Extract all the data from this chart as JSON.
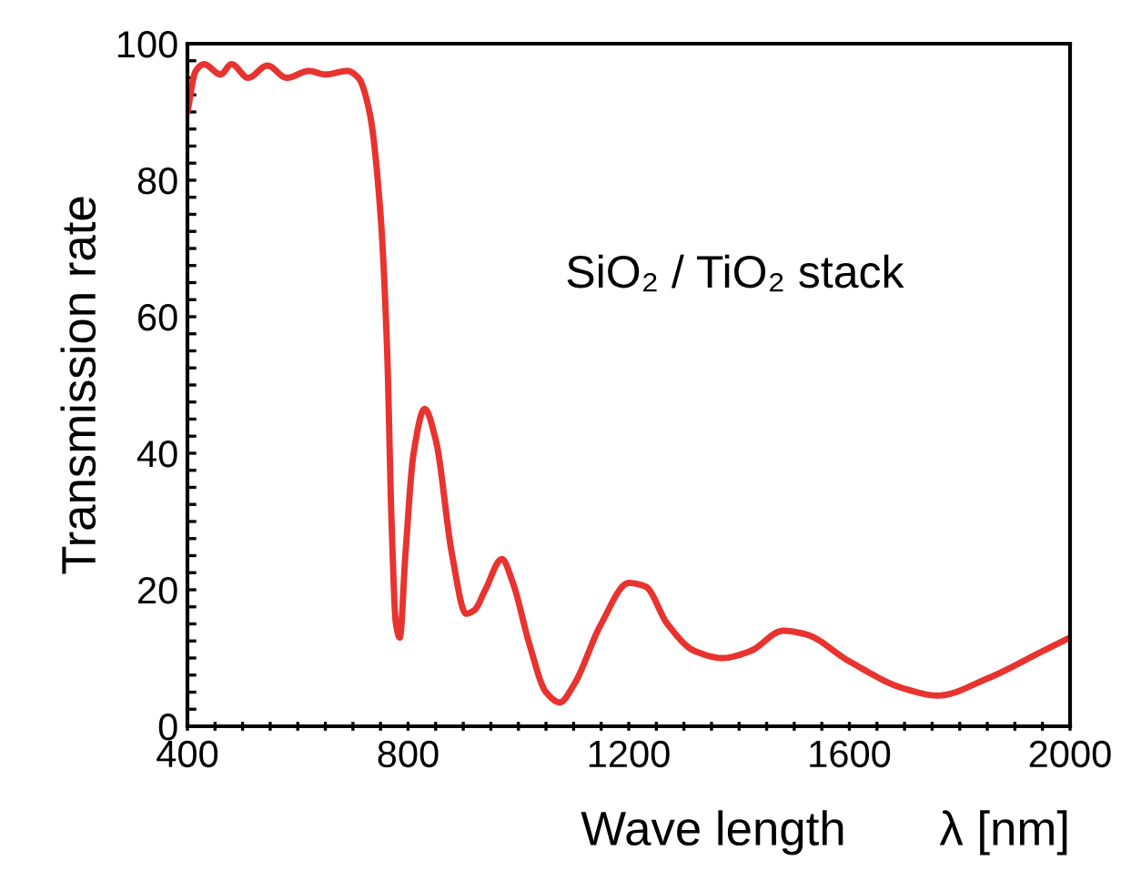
{
  "chart_data": {
    "type": "line",
    "xlabel": "Wave length       λ [nm]",
    "ylabel": "Transmission rate",
    "annotations": [
      "SiO₂ / TiO₂ stack"
    ],
    "x": [
      400,
      415,
      430,
      460,
      480,
      510,
      545,
      580,
      620,
      650,
      690,
      710,
      730,
      750,
      762,
      770,
      778,
      785,
      795,
      810,
      830,
      850,
      880,
      905,
      920,
      940,
      970,
      990,
      1020,
      1050,
      1075,
      1100,
      1150,
      1200,
      1230,
      1270,
      1320,
      1370,
      1420,
      1480,
      1520,
      1600,
      1700,
      1760,
      1850,
      1950,
      2000
    ],
    "series": [
      {
        "color": "#e8332e",
        "values": [
          90,
          96,
          97,
          95.5,
          97,
          95,
          96.8,
          95,
          96,
          95.5,
          96,
          95,
          90,
          75,
          55,
          30,
          15,
          13,
          25,
          40,
          46.5,
          42,
          25,
          16.5,
          17,
          20,
          24.5,
          21,
          12,
          5,
          3.5,
          6,
          15,
          21,
          20.5,
          15,
          11,
          10,
          11,
          14,
          13.5,
          9.5,
          5.5,
          4.5,
          7,
          11,
          13
        ]
      }
    ],
    "xlim": [
      400,
      2000
    ],
    "ylim": [
      0,
      100
    ],
    "xticks": [
      400,
      {
        "value": 450,
        "label": null
      },
      {
        "value": 500,
        "label": null
      },
      {
        "value": 550,
        "label": null
      },
      {
        "value": 600,
        "label": null
      },
      {
        "value": 650,
        "label": null
      },
      {
        "value": 700,
        "label": null
      },
      {
        "value": 750,
        "label": null
      },
      800,
      {
        "value": 850,
        "label": null
      },
      {
        "value": 900,
        "label": null
      },
      {
        "value": 950,
        "label": null
      },
      {
        "value": 1000,
        "label": null
      },
      {
        "value": 1050,
        "label": null
      },
      {
        "value": 1100,
        "label": null
      },
      {
        "value": 1150,
        "label": null
      },
      1200,
      {
        "value": 1250,
        "label": null
      },
      {
        "value": 1300,
        "label": null
      },
      {
        "value": 1350,
        "label": null
      },
      {
        "value": 1400,
        "label": null
      },
      {
        "value": 1450,
        "label": null
      },
      {
        "value": 1500,
        "label": null
      },
      {
        "value": 1550,
        "label": null
      },
      1600,
      {
        "value": 1650,
        "label": null
      },
      {
        "value": 1700,
        "label": null
      },
      {
        "value": 1750,
        "label": null
      },
      {
        "value": 1800,
        "label": null
      },
      {
        "value": 1850,
        "label": null
      },
      {
        "value": 1900,
        "label": null
      },
      {
        "value": 1950,
        "label": null
      },
      2000
    ],
    "yticks": [
      0,
      {
        "value": 2.5,
        "label": null
      },
      {
        "value": 5,
        "label": null
      },
      {
        "value": 7.5,
        "label": null
      },
      {
        "value": 10,
        "label": null
      },
      {
        "value": 12.5,
        "label": null
      },
      {
        "value": 15,
        "label": null
      },
      {
        "value": 17.5,
        "label": null
      },
      20,
      {
        "value": 22.5,
        "label": null
      },
      {
        "value": 25,
        "label": null
      },
      {
        "value": 27.5,
        "label": null
      },
      {
        "value": 30,
        "label": null
      },
      {
        "value": 32.5,
        "label": null
      },
      {
        "value": 35,
        "label": null
      },
      {
        "value": 37.5,
        "label": null
      },
      40,
      {
        "value": 42.5,
        "label": null
      },
      {
        "value": 45,
        "label": null
      },
      {
        "value": 47.5,
        "label": null
      },
      {
        "value": 50,
        "label": null
      },
      {
        "value": 52.5,
        "label": null
      },
      {
        "value": 55,
        "label": null
      },
      {
        "value": 57.5,
        "label": null
      },
      60,
      {
        "value": 62.5,
        "label": null
      },
      {
        "value": 65,
        "label": null
      },
      {
        "value": 67.5,
        "label": null
      },
      {
        "value": 70,
        "label": null
      },
      {
        "value": 72.5,
        "label": null
      },
      {
        "value": 75,
        "label": null
      },
      {
        "value": 77.5,
        "label": null
      },
      80,
      {
        "value": 82.5,
        "label": null
      },
      {
        "value": 85,
        "label": null
      },
      {
        "value": 87.5,
        "label": null
      },
      {
        "value": 90,
        "label": null
      },
      {
        "value": 92.5,
        "label": null
      },
      {
        "value": 95,
        "label": null
      },
      {
        "value": 97.5,
        "label": null
      },
      100
    ],
    "grid": false,
    "legend": false,
    "line_style": "solid"
  }
}
